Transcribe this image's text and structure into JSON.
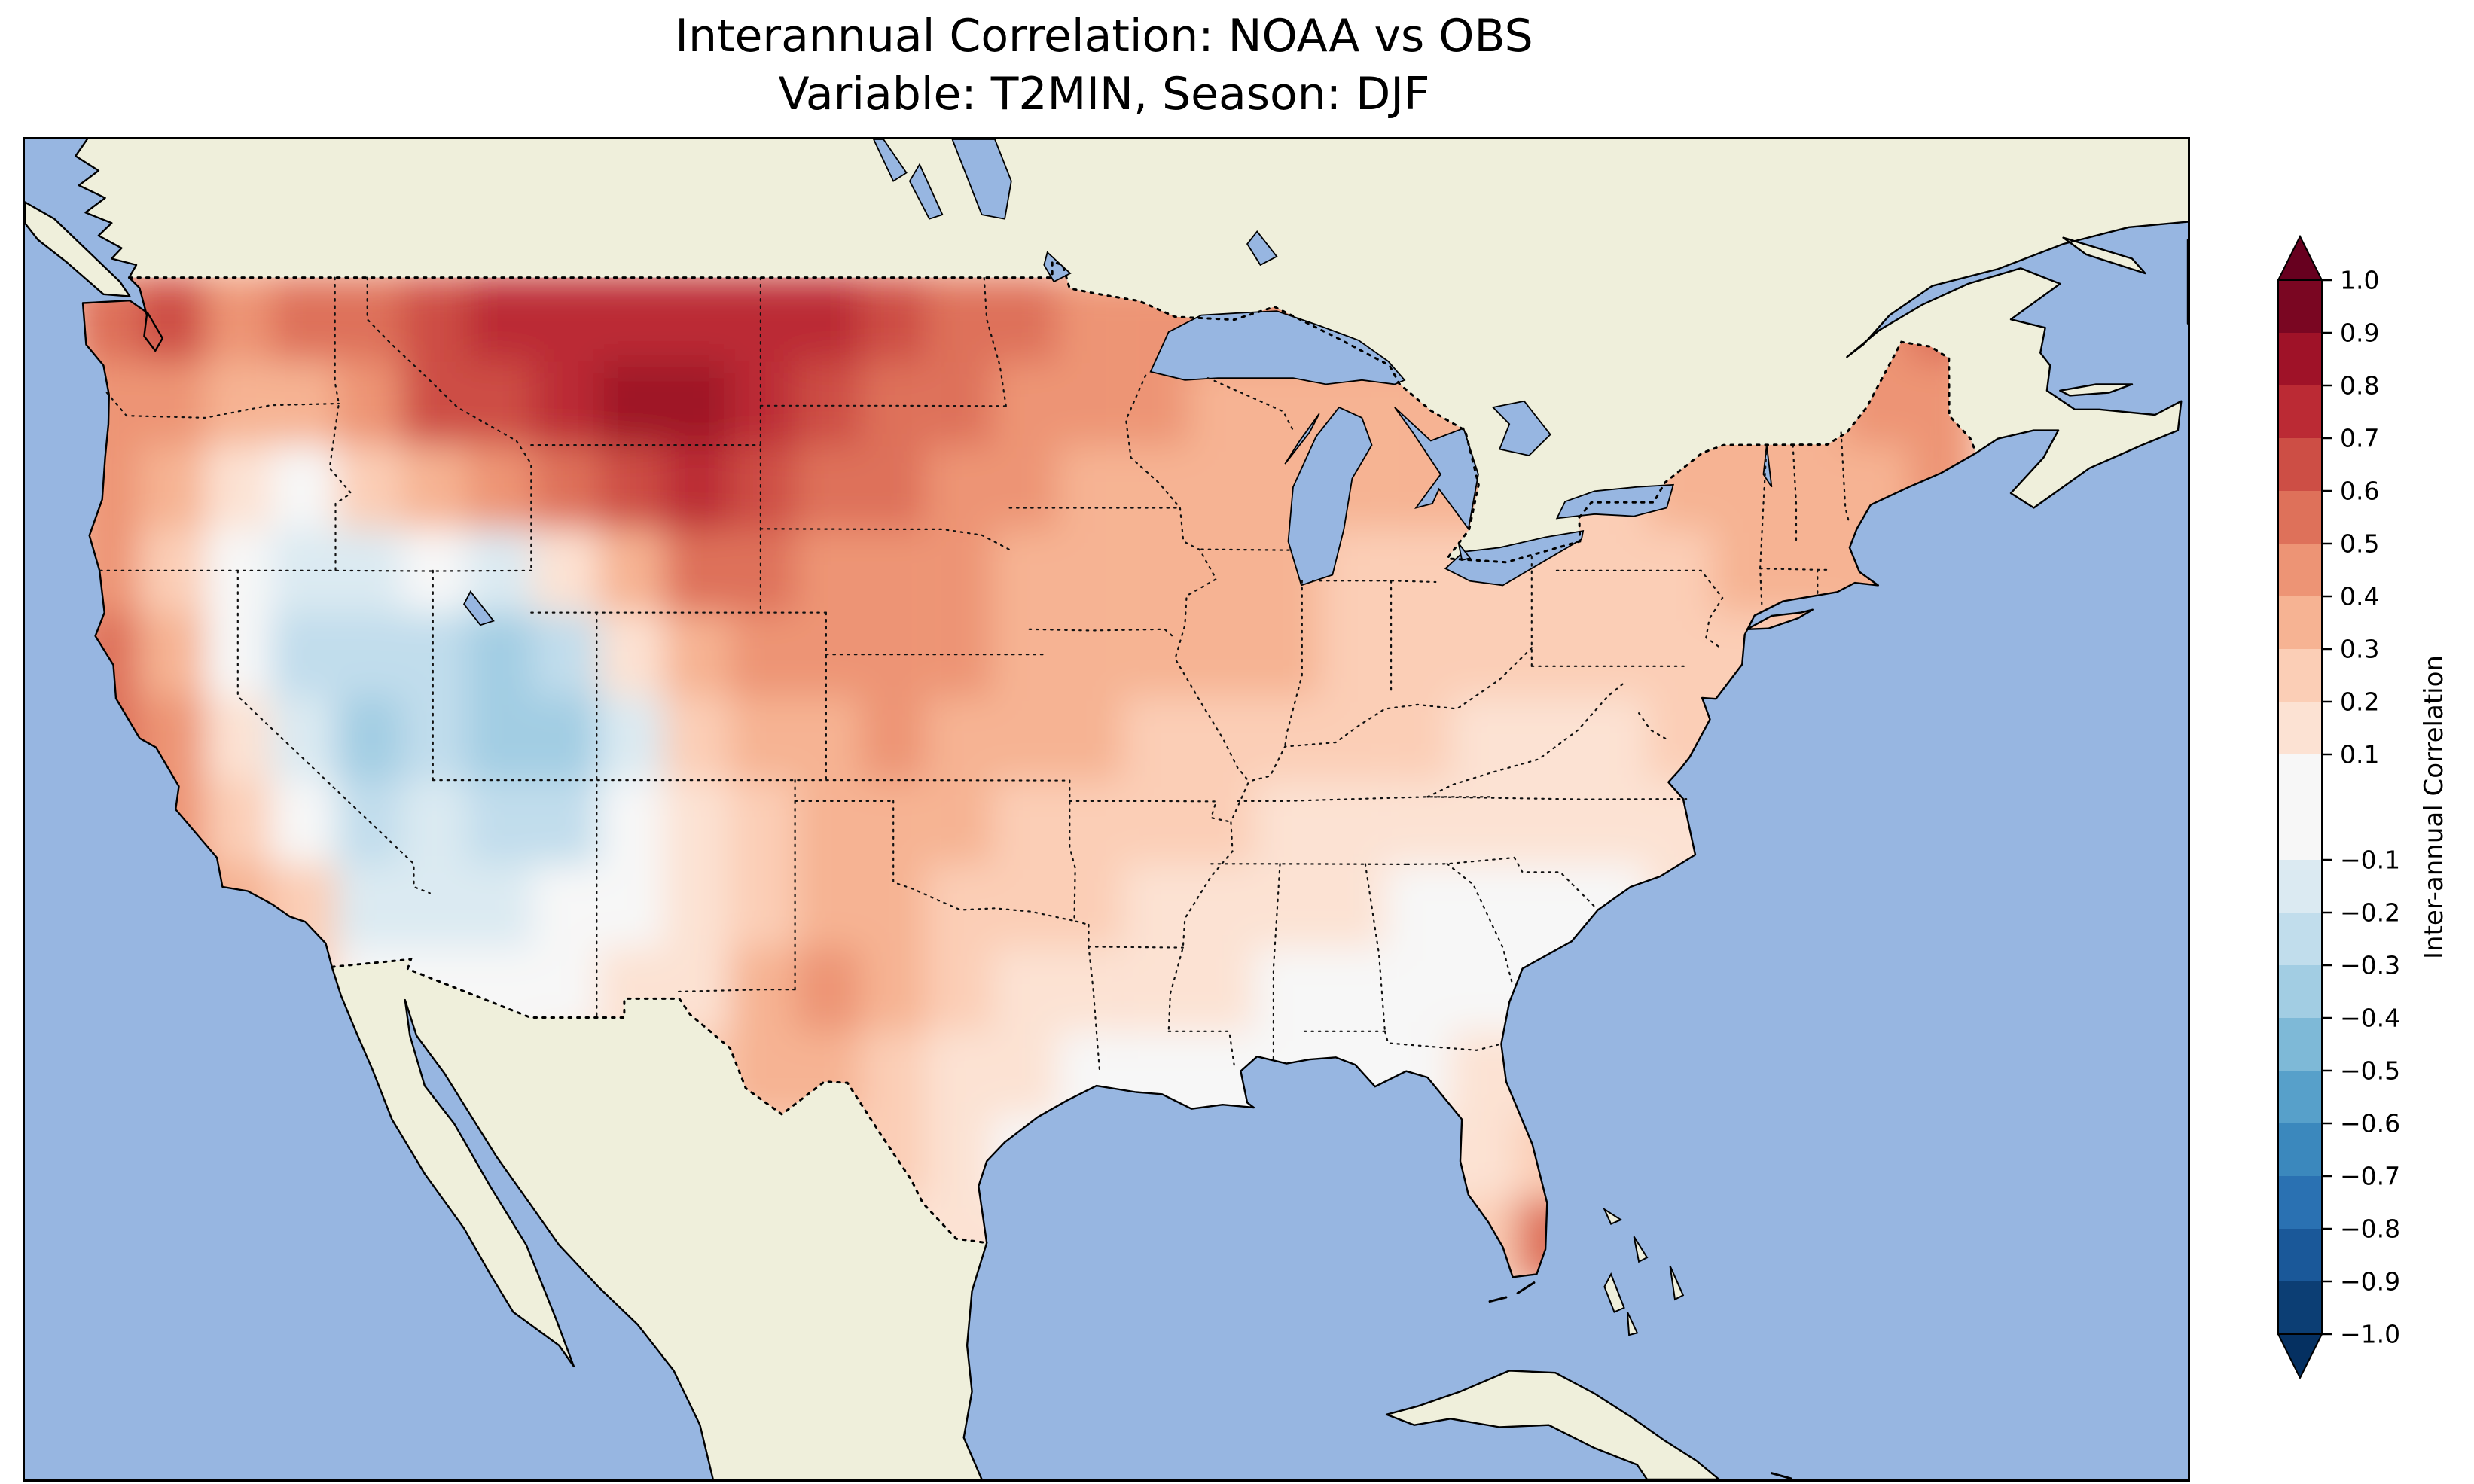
{
  "figure": {
    "title_line1": "Interannual Correlation: NOAA vs OBS",
    "title_line2": "Variable: T2MIN, Season: DJF"
  },
  "colors": {
    "ocean": "#97b6e1",
    "land": "#efefdb",
    "coastline": "#000000",
    "background": "#ffffff"
  },
  "colorbar": {
    "label": "Inter-annual Correlation",
    "tick_labels": [
      "1.0",
      "0.9",
      "0.8",
      "0.7",
      "0.6",
      "0.5",
      "0.4",
      "0.3",
      "0.2",
      "0.1",
      "−0.1",
      "−0.2",
      "−0.3",
      "−0.4",
      "−0.5",
      "−0.6",
      "−0.7",
      "−0.8",
      "−0.9",
      "−1.0"
    ],
    "tick_values": [
      1.0,
      0.9,
      0.8,
      0.7,
      0.6,
      0.5,
      0.4,
      0.3,
      0.2,
      0.1,
      -0.1,
      -0.2,
      -0.3,
      -0.4,
      -0.5,
      -0.6,
      -0.7,
      -0.8,
      -0.9,
      -1.0
    ],
    "extend": "both"
  },
  "chart_data": {
    "type": "heatmap",
    "title": "Interannual Correlation: NOAA vs OBS",
    "subtitle": "Variable: T2MIN, Season: DJF",
    "variable": "T2MIN",
    "season": "DJF",
    "datasets": [
      "NOAA",
      "OBS"
    ],
    "region": "Contiguous United States",
    "colorbar_label": "Inter-annual Correlation",
    "value_range": [
      -1.0,
      1.0
    ],
    "contour_interval": 0.1,
    "colormap": "RdBu_r",
    "colormap_stops": [
      {
        "v": -1.0,
        "c": "#053061"
      },
      {
        "v": -0.8,
        "c": "#2166ac"
      },
      {
        "v": -0.6,
        "c": "#4393c3"
      },
      {
        "v": -0.4,
        "c": "#92c5de"
      },
      {
        "v": -0.2,
        "c": "#d1e5f0"
      },
      {
        "v": 0.0,
        "c": "#f7f7f7"
      },
      {
        "v": 0.2,
        "c": "#fddbc7"
      },
      {
        "v": 0.4,
        "c": "#f4a582"
      },
      {
        "v": 0.6,
        "c": "#d6604d"
      },
      {
        "v": 0.8,
        "c": "#b2182b"
      },
      {
        "v": 1.0,
        "c": "#67001f"
      }
    ],
    "map_extent": {
      "lon_min": -126.5,
      "lon_max": -60.5,
      "lat_min": 20.3,
      "lat_max": 52.3
    },
    "grid": {
      "lon": [
        -124,
        -122,
        -120,
        -118,
        -116,
        -114,
        -112,
        -110,
        -108,
        -106,
        -104,
        -102,
        -100,
        -98,
        -96,
        -94,
        -92,
        -90,
        -88,
        -86,
        -84,
        -82,
        -80,
        -78,
        -76,
        -74,
        -72,
        -70,
        -68
      ],
      "lat": [
        48,
        46,
        44,
        42,
        40,
        38,
        36,
        34,
        32,
        30,
        28,
        26
      ],
      "values": [
        [
          0.5,
          0.6,
          0.45,
          0.5,
          0.5,
          0.6,
          0.7,
          0.7,
          0.75,
          0.7,
          0.75,
          0.7,
          0.6,
          0.5,
          0.5,
          0.45,
          0.45,
          0.4,
          0.4,
          0.4,
          0.4,
          0.35,
          0.35,
          0.3,
          0.35,
          0.35,
          0.4,
          0.45,
          0.5
        ],
        [
          0.45,
          0.4,
          0.3,
          0.35,
          0.45,
          0.6,
          0.65,
          0.7,
          0.8,
          0.8,
          0.7,
          0.6,
          0.55,
          0.5,
          0.45,
          0.4,
          0.4,
          0.35,
          0.35,
          0.35,
          0.35,
          0.3,
          0.3,
          0.3,
          0.3,
          0.35,
          0.35,
          0.4,
          0.45
        ],
        [
          0.4,
          0.3,
          0.1,
          0.05,
          0.2,
          0.3,
          0.4,
          0.55,
          0.65,
          0.7,
          0.6,
          0.55,
          0.5,
          0.45,
          0.4,
          0.35,
          0.35,
          0.3,
          0.3,
          0.3,
          0.3,
          0.3,
          0.25,
          0.25,
          0.3,
          0.3,
          0.3,
          0.35,
          0.4
        ],
        [
          0.45,
          0.25,
          0.0,
          -0.15,
          -0.1,
          0.0,
          -0.1,
          0.1,
          0.3,
          0.5,
          0.5,
          0.45,
          0.45,
          0.4,
          0.35,
          0.3,
          0.3,
          0.3,
          0.3,
          0.25,
          0.25,
          0.25,
          0.25,
          0.25,
          0.25,
          0.3,
          0.3,
          0.3,
          0.35
        ],
        [
          0.5,
          0.3,
          0.05,
          -0.2,
          -0.25,
          -0.2,
          -0.3,
          -0.2,
          0.1,
          0.3,
          0.4,
          0.4,
          0.4,
          0.4,
          0.35,
          0.3,
          0.3,
          0.3,
          0.3,
          0.25,
          0.25,
          0.2,
          0.2,
          0.2,
          0.2,
          0.25,
          0.25,
          0.3,
          0.3
        ],
        [
          0.55,
          0.4,
          0.1,
          -0.1,
          -0.3,
          -0.25,
          -0.35,
          -0.3,
          -0.1,
          0.2,
          0.3,
          0.35,
          0.4,
          0.35,
          0.3,
          0.3,
          0.25,
          0.25,
          0.25,
          0.2,
          0.2,
          0.15,
          0.15,
          0.15,
          0.2,
          0.2,
          0.2,
          0.2,
          0.2
        ],
        [
          0.5,
          0.45,
          0.2,
          0.0,
          -0.2,
          -0.15,
          -0.25,
          -0.2,
          0.0,
          0.15,
          0.25,
          0.3,
          0.35,
          0.3,
          0.25,
          0.25,
          0.2,
          0.2,
          0.15,
          0.15,
          0.1,
          0.1,
          0.1,
          0.1,
          0.15,
          0.15,
          0.1,
          0.1,
          0.1
        ],
        [
          0.4,
          0.45,
          0.35,
          0.2,
          -0.1,
          -0.15,
          -0.1,
          0.0,
          0.05,
          0.1,
          0.2,
          0.3,
          0.3,
          0.25,
          0.2,
          0.2,
          0.15,
          0.15,
          0.1,
          0.1,
          0.05,
          0.05,
          0.05,
          0.05,
          0.1,
          0.1,
          0.1,
          0.1,
          0.1
        ],
        [
          0.35,
          0.4,
          0.3,
          0.25,
          0.0,
          -0.05,
          0.0,
          0.05,
          0.1,
          0.15,
          0.3,
          0.4,
          0.3,
          0.2,
          0.15,
          0.1,
          0.1,
          0.1,
          0.05,
          0.05,
          0.0,
          0.0,
          -0.05,
          0.05,
          0.05,
          0.05,
          0.05,
          0.05,
          0.05
        ],
        [
          0.3,
          0.3,
          0.25,
          0.2,
          0.05,
          0.0,
          0.05,
          0.1,
          0.1,
          0.2,
          0.35,
          0.3,
          0.25,
          0.15,
          0.1,
          0.05,
          0.05,
          0.05,
          0.0,
          0.05,
          0.05,
          0.1,
          0.1,
          0.1,
          0.1,
          0.1,
          0.1,
          0.1,
          0.1
        ],
        [
          0.2,
          0.2,
          0.2,
          0.15,
          0.1,
          0.05,
          0.05,
          0.1,
          0.1,
          0.15,
          0.2,
          0.25,
          0.2,
          0.1,
          0.05,
          0.05,
          0.05,
          0.05,
          0.05,
          0.05,
          0.1,
          0.15,
          0.2,
          0.15,
          0.1,
          0.1,
          0.1,
          0.1,
          0.1
        ],
        [
          0.1,
          0.1,
          0.1,
          0.1,
          0.1,
          0.05,
          0.05,
          0.1,
          0.1,
          0.1,
          0.15,
          0.15,
          0.15,
          0.15,
          0.1,
          0.05,
          0.05,
          0.05,
          0.05,
          0.05,
          0.1,
          0.2,
          0.5,
          0.2,
          0.1,
          0.1,
          0.1,
          0.1,
          0.1
        ]
      ]
    }
  }
}
